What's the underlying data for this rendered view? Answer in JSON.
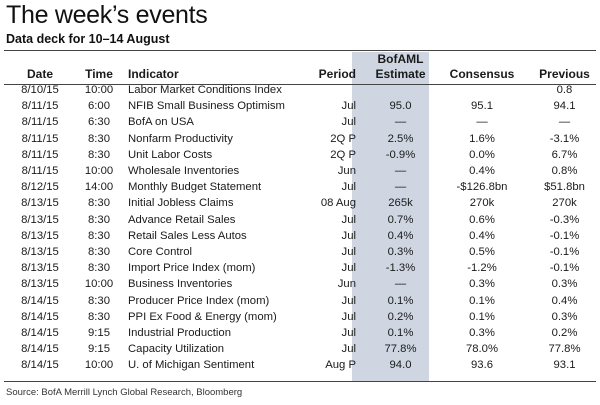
{
  "title": "The week’s events",
  "subtitle": "Data deck for 10–14 August",
  "columns": {
    "date": "Date",
    "time": "Time",
    "indicator": "Indicator",
    "period": "Period",
    "estimate_top": "BofAML",
    "estimate": "Estimate",
    "consensus": "Consensus",
    "previous": "Previous"
  },
  "colors": {
    "estimate_shade": "#cfd6e2"
  },
  "rows": [
    {
      "date": "8/10/15",
      "time": "10:00",
      "indicator": "Labor Market Conditions Index",
      "period": "",
      "estimate": "",
      "consensus": "",
      "previous": "0.8"
    },
    {
      "date": "8/11/15",
      "time": "6:00",
      "indicator": "NFIB Small Business Optimism",
      "period": "Jul",
      "estimate": "95.0",
      "consensus": "95.1",
      "previous": "94.1"
    },
    {
      "date": "8/11/15",
      "time": "6:30",
      "indicator": "BofA on USA",
      "period": "Jul",
      "estimate": "—",
      "consensus": "—",
      "previous": "—"
    },
    {
      "date": "8/11/15",
      "time": "8:30",
      "indicator": "Nonfarm Productivity",
      "period": "2Q P",
      "estimate": "2.5%",
      "consensus": "1.6%",
      "previous": "-3.1%"
    },
    {
      "date": "8/11/15",
      "time": "8:30",
      "indicator": "Unit Labor Costs",
      "period": "2Q P",
      "estimate": "-0.9%",
      "consensus": "0.0%",
      "previous": "6.7%"
    },
    {
      "date": "8/11/15",
      "time": "10:00",
      "indicator": "Wholesale Inventories",
      "period": "Jun",
      "estimate": "—",
      "consensus": "0.4%",
      "previous": "0.8%"
    },
    {
      "date": "8/12/15",
      "time": "14:00",
      "indicator": "Monthly Budget Statement",
      "period": "Jul",
      "estimate": "—",
      "consensus": "-$126.8bn",
      "previous": "$51.8bn"
    },
    {
      "date": "8/13/15",
      "time": "8:30",
      "indicator": "Initial Jobless Claims",
      "period": "08 Aug",
      "estimate": "265k",
      "consensus": "270k",
      "previous": "270k"
    },
    {
      "date": "8/13/15",
      "time": "8:30",
      "indicator": "Advance Retail Sales",
      "period": "Jul",
      "estimate": "0.7%",
      "consensus": "0.6%",
      "previous": "-0.3%"
    },
    {
      "date": "8/13/15",
      "time": "8:30",
      "indicator": "Retail Sales Less Autos",
      "period": "Jul",
      "estimate": "0.4%",
      "consensus": "0.4%",
      "previous": "-0.1%"
    },
    {
      "date": "8/13/15",
      "time": "8:30",
      "indicator": "Core Control",
      "period": "Jul",
      "estimate": "0.3%",
      "consensus": "0.5%",
      "previous": "-0.1%"
    },
    {
      "date": "8/13/15",
      "time": "8:30",
      "indicator": "Import Price Index (mom)",
      "period": "Jul",
      "estimate": "-1.3%",
      "consensus": "-1.2%",
      "previous": "-0.1%"
    },
    {
      "date": "8/13/15",
      "time": "10:00",
      "indicator": "Business Inventories",
      "period": "Jun",
      "estimate": "—",
      "consensus": "0.3%",
      "previous": "0.3%"
    },
    {
      "date": "8/14/15",
      "time": "8:30",
      "indicator": "Producer Price Index (mom)",
      "period": "Jul",
      "estimate": "0.1%",
      "consensus": "0.1%",
      "previous": "0.4%"
    },
    {
      "date": "8/14/15",
      "time": "8:30",
      "indicator": "PPI Ex Food & Energy (mom)",
      "period": "Jul",
      "estimate": "0.2%",
      "consensus": "0.1%",
      "previous": "0.3%"
    },
    {
      "date": "8/14/15",
      "time": "9:15",
      "indicator": "Industrial Production",
      "period": "Jul",
      "estimate": "0.1%",
      "consensus": "0.3%",
      "previous": "0.2%"
    },
    {
      "date": "8/14/15",
      "time": "9:15",
      "indicator": "Capacity Utilization",
      "period": "Jul",
      "estimate": "77.8%",
      "consensus": "78.0%",
      "previous": "77.8%"
    },
    {
      "date": "8/14/15",
      "time": "10:00",
      "indicator": "U. of Michigan Sentiment",
      "period": "Aug P",
      "estimate": "94.0",
      "consensus": "93.6",
      "previous": "93.1"
    }
  ],
  "source": "Source: BofA Merrill Lynch Global Research, Bloomberg"
}
